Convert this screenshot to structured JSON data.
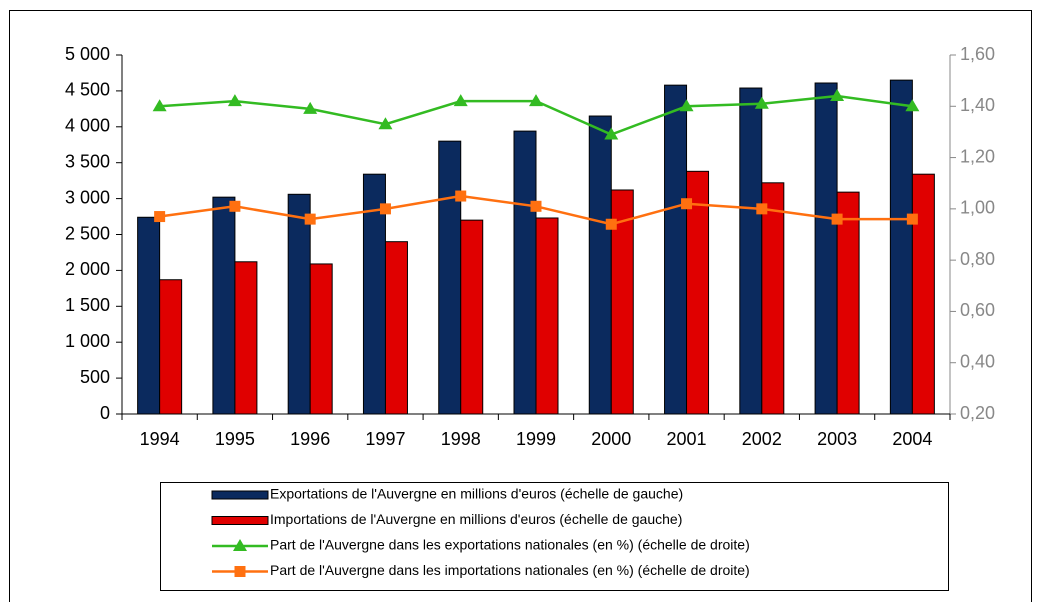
{
  "chart_data": {
    "type": "bar-line",
    "categories": [
      "1994",
      "1995",
      "1996",
      "1997",
      "1998",
      "1999",
      "2000",
      "2001",
      "2002",
      "2003",
      "2004"
    ],
    "series": [
      {
        "name": "Exportations de l'Auvergne en millions d'euros (échelle de gauche)",
        "type": "bar",
        "color": "#0b2a5e",
        "values": [
          2740,
          3020,
          3060,
          3340,
          3800,
          3940,
          4150,
          4580,
          4540,
          4610,
          4650
        ]
      },
      {
        "name": "Importations de l'Auvergne en millions d'euros (échelle de gauche)",
        "type": "bar",
        "color": "#e00000",
        "values": [
          1870,
          2120,
          2090,
          2400,
          2700,
          2730,
          3120,
          3380,
          3220,
          3090,
          3340
        ]
      },
      {
        "name": "Part de l'Auvergne dans les exportations nationales (en %) (échelle de droite)",
        "type": "line",
        "marker": "triangle",
        "axis": "y2",
        "color": "#33bb22",
        "values": [
          1.4,
          1.42,
          1.39,
          1.33,
          1.42,
          1.42,
          1.29,
          1.4,
          1.41,
          1.44,
          1.4
        ]
      },
      {
        "name": "Part de l'Auvergne dans les importations nationales (en %) (échelle de droite)",
        "type": "line",
        "marker": "square",
        "axis": "y2",
        "color": "#ff7010",
        "values": [
          0.97,
          1.01,
          0.96,
          1.0,
          1.05,
          1.01,
          0.94,
          1.02,
          1.0,
          0.96,
          0.96
        ]
      }
    ],
    "ylim": [
      0,
      5000
    ],
    "yticks": [
      0,
      500,
      {
        "value": 1000,
        "label": "1 000"
      },
      {
        "value": 1500,
        "label": "1 500"
      },
      {
        "value": 2000,
        "label": "2 000"
      },
      {
        "value": 2500,
        "label": "2 500"
      },
      {
        "value": 3000,
        "label": "3 000"
      },
      {
        "value": 3500,
        "label": "3 500"
      },
      {
        "value": 4000,
        "label": "4 000"
      },
      {
        "value": 4500,
        "label": "4 500"
      },
      {
        "value": 5000,
        "label": "5 000"
      }
    ],
    "y2lim": [
      0.2,
      1.6
    ],
    "y2ticks": [
      {
        "value": 0.2,
        "label": "0,20"
      },
      {
        "value": 0.4,
        "label": "0,40"
      },
      {
        "value": 0.6,
        "label": "0,60"
      },
      {
        "value": 0.8,
        "label": "0,80"
      },
      {
        "value": 1.0,
        "label": "1,00"
      },
      {
        "value": 1.2,
        "label": "1,20"
      },
      {
        "value": 1.4,
        "label": "1,40"
      },
      {
        "value": 1.6,
        "label": "1,60"
      }
    ],
    "legend": "bottom"
  }
}
